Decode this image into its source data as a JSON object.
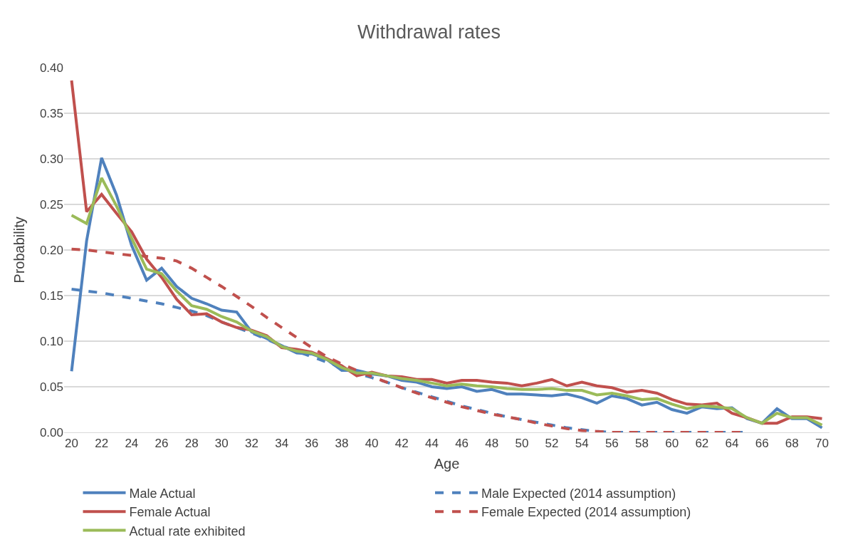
{
  "chart_data": {
    "type": "line",
    "title": "Withdrawal rates",
    "xlabel": "Age",
    "ylabel": "Probability",
    "x": [
      20,
      21,
      22,
      23,
      24,
      25,
      26,
      27,
      28,
      29,
      30,
      31,
      32,
      33,
      34,
      35,
      36,
      37,
      38,
      39,
      40,
      41,
      42,
      43,
      44,
      45,
      46,
      47,
      48,
      49,
      50,
      51,
      52,
      53,
      54,
      55,
      56,
      57,
      58,
      59,
      60,
      61,
      62,
      63,
      64,
      65,
      66,
      67,
      68,
      69,
      70
    ],
    "series": [
      {
        "name": "Male Actual",
        "color": "#4f81bd",
        "line_style": "solid",
        "values": [
          0.067,
          0.21,
          0.301,
          0.26,
          0.205,
          0.167,
          0.18,
          0.16,
          0.147,
          0.141,
          0.134,
          0.132,
          0.11,
          0.103,
          0.095,
          0.087,
          0.086,
          0.08,
          0.068,
          0.068,
          0.064,
          0.062,
          0.057,
          0.055,
          0.05,
          0.048,
          0.05,
          0.045,
          0.047,
          0.042,
          0.042,
          0.041,
          0.04,
          0.042,
          0.038,
          0.032,
          0.04,
          0.037,
          0.03,
          0.033,
          0.025,
          0.021,
          0.028,
          0.026,
          0.027,
          0.015,
          0.01,
          0.026,
          0.015,
          0.015,
          0.005
        ]
      },
      {
        "name": "Male Expected (2014 assumption)",
        "color": "#4f81bd",
        "line_style": "dashed",
        "values": [
          0.157,
          0.155,
          0.153,
          0.15,
          0.147,
          0.144,
          0.141,
          0.137,
          0.133,
          0.128,
          0.121,
          0.115,
          0.109,
          0.102,
          0.095,
          0.089,
          0.083,
          0.077,
          0.071,
          0.065,
          0.06,
          0.055,
          0.049,
          0.044,
          0.039,
          0.034,
          0.029,
          0.025,
          0.021,
          0.017,
          0.014,
          0.011,
          0.008,
          0.005,
          0.003,
          0.001,
          0,
          0,
          0,
          0,
          0,
          0,
          0,
          0,
          0,
          0,
          null,
          null,
          null,
          null,
          null
        ]
      },
      {
        "name": "Female Actual",
        "color": "#c0504d",
        "line_style": "solid",
        "values": [
          0.386,
          0.242,
          0.261,
          0.24,
          0.22,
          0.19,
          0.17,
          0.146,
          0.129,
          0.13,
          0.121,
          0.115,
          0.112,
          0.106,
          0.093,
          0.091,
          0.088,
          0.081,
          0.073,
          0.062,
          0.066,
          0.062,
          0.061,
          0.058,
          0.058,
          0.054,
          0.057,
          0.057,
          0.055,
          0.054,
          0.051,
          0.054,
          0.058,
          0.051,
          0.055,
          0.051,
          0.049,
          0.044,
          0.046,
          0.043,
          0.036,
          0.031,
          0.03,
          0.032,
          0.021,
          0.016,
          0.01,
          0.01,
          0.017,
          0.017,
          0.015
        ]
      },
      {
        "name": "Female Expected (2014 assumption)",
        "color": "#c0504d",
        "line_style": "dashed",
        "values": [
          0.201,
          0.2,
          0.198,
          0.196,
          0.194,
          0.193,
          0.191,
          0.188,
          0.18,
          0.17,
          0.16,
          0.149,
          0.138,
          0.126,
          0.115,
          0.104,
          0.093,
          0.083,
          0.075,
          0.068,
          0.061,
          0.055,
          0.049,
          0.043,
          0.038,
          0.033,
          0.028,
          0.024,
          0.02,
          0.017,
          0.014,
          0.01,
          0.007,
          0.004,
          0.002,
          0.001,
          0,
          0,
          0,
          0,
          0,
          0,
          0,
          0,
          0,
          0,
          null,
          null,
          null,
          null,
          null
        ]
      },
      {
        "name": "Actual rate exhibited",
        "color": "#9bbb59",
        "line_style": "solid",
        "values": [
          0.238,
          0.229,
          0.279,
          0.248,
          0.213,
          0.179,
          0.174,
          0.155,
          0.139,
          0.135,
          0.127,
          0.121,
          0.111,
          0.105,
          0.094,
          0.089,
          0.087,
          0.08,
          0.071,
          0.065,
          0.065,
          0.062,
          0.059,
          0.057,
          0.054,
          0.051,
          0.053,
          0.051,
          0.05,
          0.048,
          0.047,
          0.047,
          0.048,
          0.046,
          0.046,
          0.041,
          0.043,
          0.04,
          0.036,
          0.037,
          0.031,
          0.026,
          0.029,
          0.028,
          0.026,
          0.016,
          0.01,
          0.021,
          0.016,
          0.016,
          0.008
        ]
      }
    ],
    "xlim": [
      19.5,
      70.5
    ],
    "xticks": [
      20,
      22,
      24,
      26,
      28,
      30,
      32,
      34,
      36,
      38,
      40,
      42,
      44,
      46,
      48,
      50,
      52,
      54,
      56,
      58,
      60,
      62,
      64,
      66,
      68,
      70
    ],
    "ylim": [
      0,
      0.4
    ],
    "yticks": [
      {
        "value": 0,
        "label": "0.00"
      },
      {
        "value": 0.05,
        "label": "0.05"
      },
      {
        "value": 0.1,
        "label": "0.10"
      },
      {
        "value": 0.15,
        "label": "0.15"
      },
      {
        "value": 0.2,
        "label": "0.20"
      },
      {
        "value": 0.25,
        "label": "0.25"
      },
      {
        "value": 0.3,
        "label": "0.30"
      },
      {
        "value": 0.35,
        "label": "0.35"
      },
      {
        "value": 0.4,
        "label": "0.40"
      }
    ],
    "grid": "y",
    "legend": "bottom",
    "marker": "none"
  }
}
